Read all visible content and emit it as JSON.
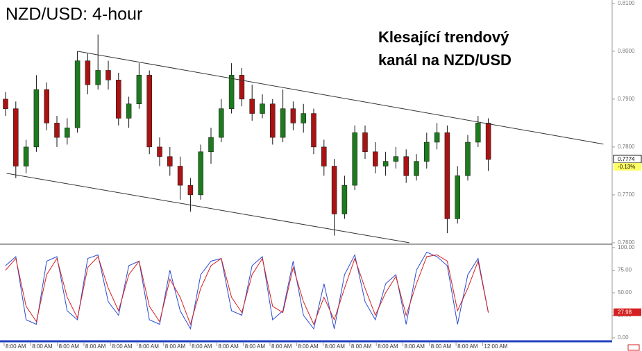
{
  "chart_data": {
    "type": "candlestick",
    "title": "NZD/USD: 4-hour",
    "annotation": [
      "Klesající trendový",
      "kanál na NZD/USD"
    ],
    "up_color": "#1e7a1e",
    "down_color": "#a81414",
    "open": [
      0.79,
      0.788,
      0.776,
      0.78,
      0.792,
      0.785,
      0.782,
      0.784,
      0.798,
      0.793,
      0.796,
      0.794,
      0.786,
      0.789,
      0.795,
      0.78,
      0.778,
      0.776,
      0.772,
      0.77,
      0.779,
      0.782,
      0.788,
      0.795,
      0.79,
      0.787,
      0.789,
      0.782,
      0.788,
      0.785,
      0.787,
      0.78,
      0.776,
      0.766,
      0.772,
      0.783,
      0.779,
      0.776,
      0.777,
      0.778,
      0.774,
      0.777,
      0.781,
      0.783,
      0.765,
      0.774,
      0.781,
      0.785
    ],
    "high": [
      0.7915,
      0.7895,
      0.7815,
      0.795,
      0.7935,
      0.7865,
      0.786,
      0.8,
      0.7995,
      0.8035,
      0.798,
      0.7955,
      0.7905,
      0.7975,
      0.796,
      0.782,
      0.78,
      0.778,
      0.7735,
      0.7805,
      0.784,
      0.79,
      0.7975,
      0.7965,
      0.793,
      0.791,
      0.79,
      0.792,
      0.7895,
      0.789,
      0.788,
      0.7815,
      0.7775,
      0.774,
      0.7845,
      0.7845,
      0.781,
      0.779,
      0.78,
      0.7795,
      0.7785,
      0.783,
      0.785,
      0.7845,
      0.776,
      0.7825,
      0.7865,
      0.786
    ],
    "low": [
      0.7865,
      0.7735,
      0.7745,
      0.779,
      0.7835,
      0.78,
      0.7805,
      0.783,
      0.791,
      0.792,
      0.792,
      0.7845,
      0.784,
      0.788,
      0.7785,
      0.776,
      0.774,
      0.769,
      0.7665,
      0.769,
      0.7765,
      0.781,
      0.787,
      0.7885,
      0.7855,
      0.786,
      0.7805,
      0.781,
      0.7835,
      0.783,
      0.7785,
      0.774,
      0.7615,
      0.765,
      0.771,
      0.7775,
      0.7745,
      0.774,
      0.7755,
      0.7725,
      0.773,
      0.7755,
      0.7795,
      0.762,
      0.764,
      0.773,
      0.78,
      0.775
    ],
    "close": [
      0.788,
      0.776,
      0.78,
      0.792,
      0.785,
      0.782,
      0.784,
      0.798,
      0.793,
      0.796,
      0.794,
      0.786,
      0.789,
      0.795,
      0.78,
      0.778,
      0.776,
      0.772,
      0.77,
      0.779,
      0.782,
      0.788,
      0.795,
      0.79,
      0.787,
      0.789,
      0.782,
      0.788,
      0.785,
      0.787,
      0.78,
      0.776,
      0.766,
      0.772,
      0.783,
      0.779,
      0.776,
      0.777,
      0.778,
      0.774,
      0.777,
      0.781,
      0.783,
      0.765,
      0.774,
      0.781,
      0.785,
      0.7774
    ],
    "change_label": "-0.13%",
    "ylim": [
      0.7597,
      0.8107
    ],
    "yticks": [
      {
        "value": 0.76,
        "label": "0.7600"
      },
      {
        "value": 0.77,
        "label": "0.7700"
      },
      {
        "value": 0.78,
        "label": "0.7800"
      },
      {
        "value": 0.79,
        "label": "0.7900"
      },
      {
        "value": 0.8,
        "label": "0.8000"
      },
      {
        "value": 0.81,
        "label": "0.8100"
      }
    ],
    "trendlines": [
      {
        "color": "#333333",
        "x": [
          7.0,
          58.2
        ],
        "y": [
          0.8,
          0.7806
        ]
      },
      {
        "color": "#333333",
        "x": [
          0.1,
          39.3
        ],
        "y": [
          0.7745,
          0.76
        ]
      }
    ],
    "time_labels": [
      "8:00 AM",
      "8:00 AM",
      "8:00 AM",
      "8:00 AM",
      "8:00 AM",
      "8:00 AM",
      "8:00 AM",
      "8:00 AM",
      "8:00 AM",
      "8:00 AM",
      "8:00 AM",
      "8:00 AM",
      "8:00 AM",
      "8:00 AM",
      "8:00 AM",
      "8:00 AM",
      "8:00 AM",
      "8:00 AM",
      "12:00 AM"
    ],
    "oscillator": {
      "ylim": [
        0,
        100
      ],
      "yticks": [
        {
          "value": 0,
          "label": "0.00"
        },
        {
          "value": 25,
          "label": "25.00"
        },
        {
          "value": 50,
          "label": "50.00"
        },
        {
          "value": 75,
          "label": "75.00"
        },
        {
          "value": 100,
          "label": "100.00"
        }
      ],
      "series": [
        {
          "color": "#2a4bd0",
          "values": [
            80,
            90,
            20,
            15,
            85,
            90,
            30,
            20,
            88,
            92,
            40,
            25,
            80,
            85,
            20,
            15,
            75,
            30,
            10,
            70,
            85,
            88,
            30,
            25,
            80,
            90,
            20,
            30,
            85,
            25,
            10,
            60,
            10,
            70,
            92,
            40,
            20,
            60,
            70,
            15,
            75,
            95,
            90,
            80,
            15,
            70,
            88,
            28
          ]
        },
        {
          "color": "#d42020",
          "values": [
            75,
            88,
            35,
            18,
            70,
            88,
            45,
            22,
            78,
            90,
            55,
            30,
            70,
            85,
            35,
            18,
            65,
            45,
            15,
            55,
            80,
            88,
            45,
            28,
            70,
            88,
            35,
            28,
            78,
            40,
            15,
            45,
            20,
            55,
            88,
            55,
            25,
            50,
            68,
            25,
            60,
            90,
            92,
            85,
            30,
            55,
            85,
            27.98
          ]
        }
      ]
    }
  }
}
